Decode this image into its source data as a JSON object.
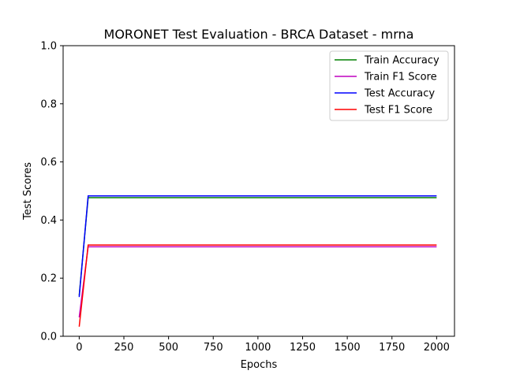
{
  "chart_data": {
    "type": "line",
    "title": "MORONET Test Evaluation - BRCA Dataset - mrna",
    "xlabel": "Epochs",
    "ylabel": "Test Scores",
    "xlim": [
      -90,
      2100
    ],
    "ylim": [
      0,
      1.0
    ],
    "xticks": [
      0,
      250,
      500,
      750,
      1000,
      1250,
      1500,
      1750,
      2000
    ],
    "xtick_labels": [
      "0",
      "250",
      "500",
      "750",
      "1000",
      "1250",
      "1500",
      "1750",
      "2000"
    ],
    "yticks": [
      0,
      0.2,
      0.4,
      0.6,
      0.8,
      1.0
    ],
    "ytick_labels": [
      "0.0",
      "0.2",
      "0.4",
      "0.6",
      "0.8",
      "1.0"
    ],
    "grid": false,
    "legend_position": "top-right",
    "series": [
      {
        "name": "Train Accuracy",
        "color": "#008000",
        "x": [
          0,
          50,
          2000
        ],
        "y": [
          0.14,
          0.477,
          0.477
        ]
      },
      {
        "name": "Train F1 Score",
        "color": "#bf00bf",
        "x": [
          0,
          50,
          2000
        ],
        "y": [
          0.065,
          0.308,
          0.308
        ]
      },
      {
        "name": "Test Accuracy",
        "color": "#0000ff",
        "x": [
          0,
          50,
          2000
        ],
        "y": [
          0.135,
          0.483,
          0.483
        ]
      },
      {
        "name": "Test F1 Score",
        "color": "#ff0000",
        "x": [
          0,
          50,
          2000
        ],
        "y": [
          0.033,
          0.314,
          0.314
        ]
      }
    ]
  }
}
